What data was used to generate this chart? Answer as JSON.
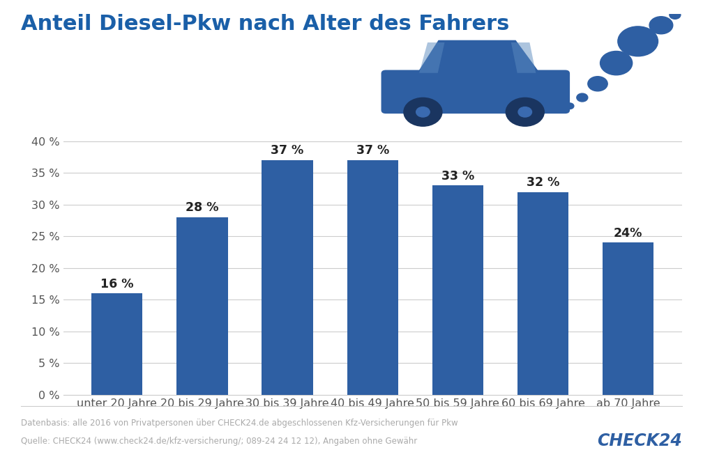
{
  "title": "Anteil Diesel-Pkw nach Alter des Fahrers",
  "categories": [
    "unter 20 Jahre",
    "20 bis 29 Jahre",
    "30 bis 39 Jahre",
    "40 bis 49 Jahre",
    "50 bis 59 Jahre",
    "60 bis 69 Jahre",
    "ab 70 Jahre"
  ],
  "values": [
    16,
    28,
    37,
    37,
    33,
    32,
    24
  ],
  "bar_labels": [
    "16 %",
    "28 %",
    "37 %",
    "37 %",
    "33 %",
    "32 %",
    "24%"
  ],
  "bar_color": "#2e5fa3",
  "title_color": "#1a5fa8",
  "background_color": "#ffffff",
  "yticks": [
    0,
    5,
    10,
    15,
    20,
    25,
    30,
    35,
    40
  ],
  "ytick_labels": [
    "0 %",
    "5 %",
    "10 %",
    "15 %",
    "20 %",
    "25 %",
    "30 %",
    "35 %",
    "40 %"
  ],
  "ylim": [
    0,
    42
  ],
  "grid_color": "#cccccc",
  "label_fontsize": 12.5,
  "title_fontsize": 22,
  "tick_fontsize": 11.5,
  "footnote_line1": "Datenbasis: alle 2016 von Privatpersonen über CHECK24.de abgeschlossenen Kfz-Versicherungen für Pkw",
  "footnote_line2": "Quelle: CHECK24 (www.check24.de/kfz-versicherung/; 089-24 24 12 12), Angaben ohne Gewähr",
  "footnote_color": "#aaaaaa",
  "footnote_fontsize": 8.5,
  "check24_fontsize": 17
}
